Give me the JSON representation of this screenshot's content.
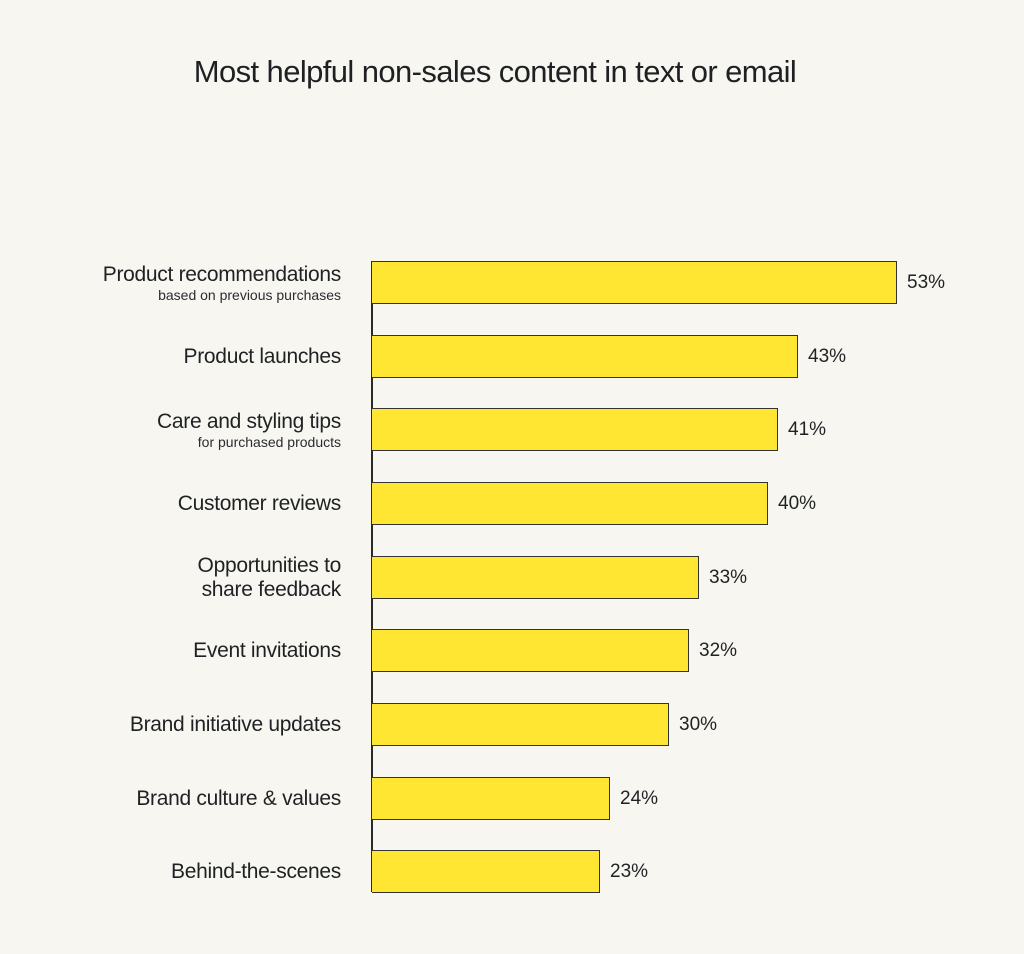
{
  "title": "Most helpful non-sales content in text or email",
  "colors": {
    "background": "#f7f6f0",
    "bar": "#ffe633",
    "bar_border": "#333333",
    "text": "#1f2124"
  },
  "rows": [
    {
      "label": "Product recommendations",
      "sublabel": "based on previous purchases",
      "value": 53,
      "value_label": "53%"
    },
    {
      "label": "Product launches",
      "sublabel": "",
      "value": 43,
      "value_label": "43%"
    },
    {
      "label": "Care and styling tips",
      "sublabel": "for purchased products",
      "value": 41,
      "value_label": "41%"
    },
    {
      "label": "Customer reviews",
      "sublabel": "",
      "value": 40,
      "value_label": "40%"
    },
    {
      "label": "Opportunities to",
      "label2": "share feedback",
      "sublabel": "",
      "value": 33,
      "value_label": "33%"
    },
    {
      "label": "Event invitations",
      "sublabel": "",
      "value": 32,
      "value_label": "32%"
    },
    {
      "label": "Brand initiative updates",
      "sublabel": "",
      "value": 30,
      "value_label": "30%"
    },
    {
      "label": "Brand culture & values",
      "sublabel": "",
      "value": 24,
      "value_label": "24%"
    },
    {
      "label": "Behind-the-scenes",
      "sublabel": "",
      "value": 23,
      "value_label": "23%"
    }
  ],
  "chart_data": {
    "type": "bar",
    "orientation": "horizontal",
    "title": "Most helpful non-sales content in text or email",
    "categories": [
      "Product recommendations (based on previous purchases)",
      "Product launches",
      "Care and styling tips (for purchased products)",
      "Customer reviews",
      "Opportunities to share feedback",
      "Event invitations",
      "Brand initiative updates",
      "Brand culture & values",
      "Behind-the-scenes"
    ],
    "values": [
      53,
      43,
      41,
      40,
      33,
      32,
      30,
      24,
      23
    ],
    "unit": "%",
    "xlabel": "",
    "ylabel": "",
    "grid": false,
    "legend": null
  }
}
